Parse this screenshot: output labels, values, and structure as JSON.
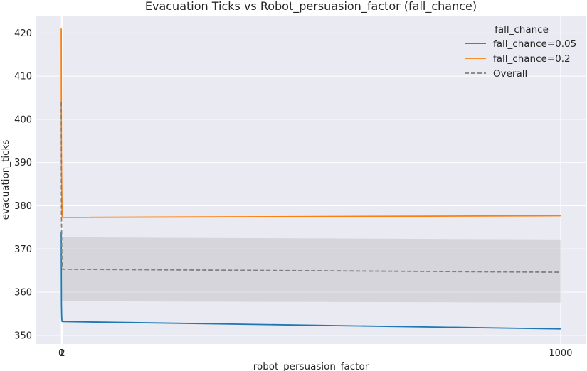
{
  "chart_data": {
    "type": "line",
    "title": "Evacuation Ticks vs Robot_persuasion_factor (fall_chance)",
    "xlabel": "robot_persuasion_factor",
    "ylabel": "evacuation_ticks",
    "xlim": [
      -50,
      1050
    ],
    "ylim": [
      348,
      424
    ],
    "xticks": [
      0,
      1,
      2,
      1000
    ],
    "yticks": [
      350,
      360,
      370,
      380,
      390,
      400,
      410,
      420
    ],
    "grid": true,
    "legend": {
      "title": "fall_chance",
      "position": "top-right",
      "entries": [
        "fall_chance=0.05",
        "fall_chance=0.2",
        "Overall"
      ]
    },
    "series": [
      {
        "name": "fall_chance=0.05",
        "color": "#1f77b4",
        "style": "solid",
        "x": [
          0,
          0.2,
          0.5,
          1,
          1.5,
          2,
          5,
          1000
        ],
        "y": [
          374,
          366,
          357,
          354,
          353.3,
          353.2,
          353.2,
          351.5
        ]
      },
      {
        "name": "fall_chance=0.2",
        "color": "#ff7f0e",
        "style": "solid",
        "x": [
          0,
          0.2,
          0.5,
          1,
          1.5,
          2,
          5,
          1000
        ],
        "y": [
          421,
          404,
          392,
          385,
          379,
          377.4,
          377.3,
          377.7
        ]
      },
      {
        "name": "Overall",
        "color": "#808080",
        "style": "dashed",
        "x": [
          0,
          0.2,
          0.5,
          1,
          1.5,
          2,
          5,
          1000
        ],
        "y": [
          404,
          390,
          378,
          370,
          366,
          365.3,
          365.3,
          364.6
        ],
        "band_lower": [
          388,
          376,
          366,
          360,
          358.5,
          357.9,
          357.9,
          357.6
        ],
        "band_upper": [
          418,
          404,
          390,
          380,
          373.5,
          372.7,
          372.7,
          372.2
        ]
      }
    ]
  }
}
